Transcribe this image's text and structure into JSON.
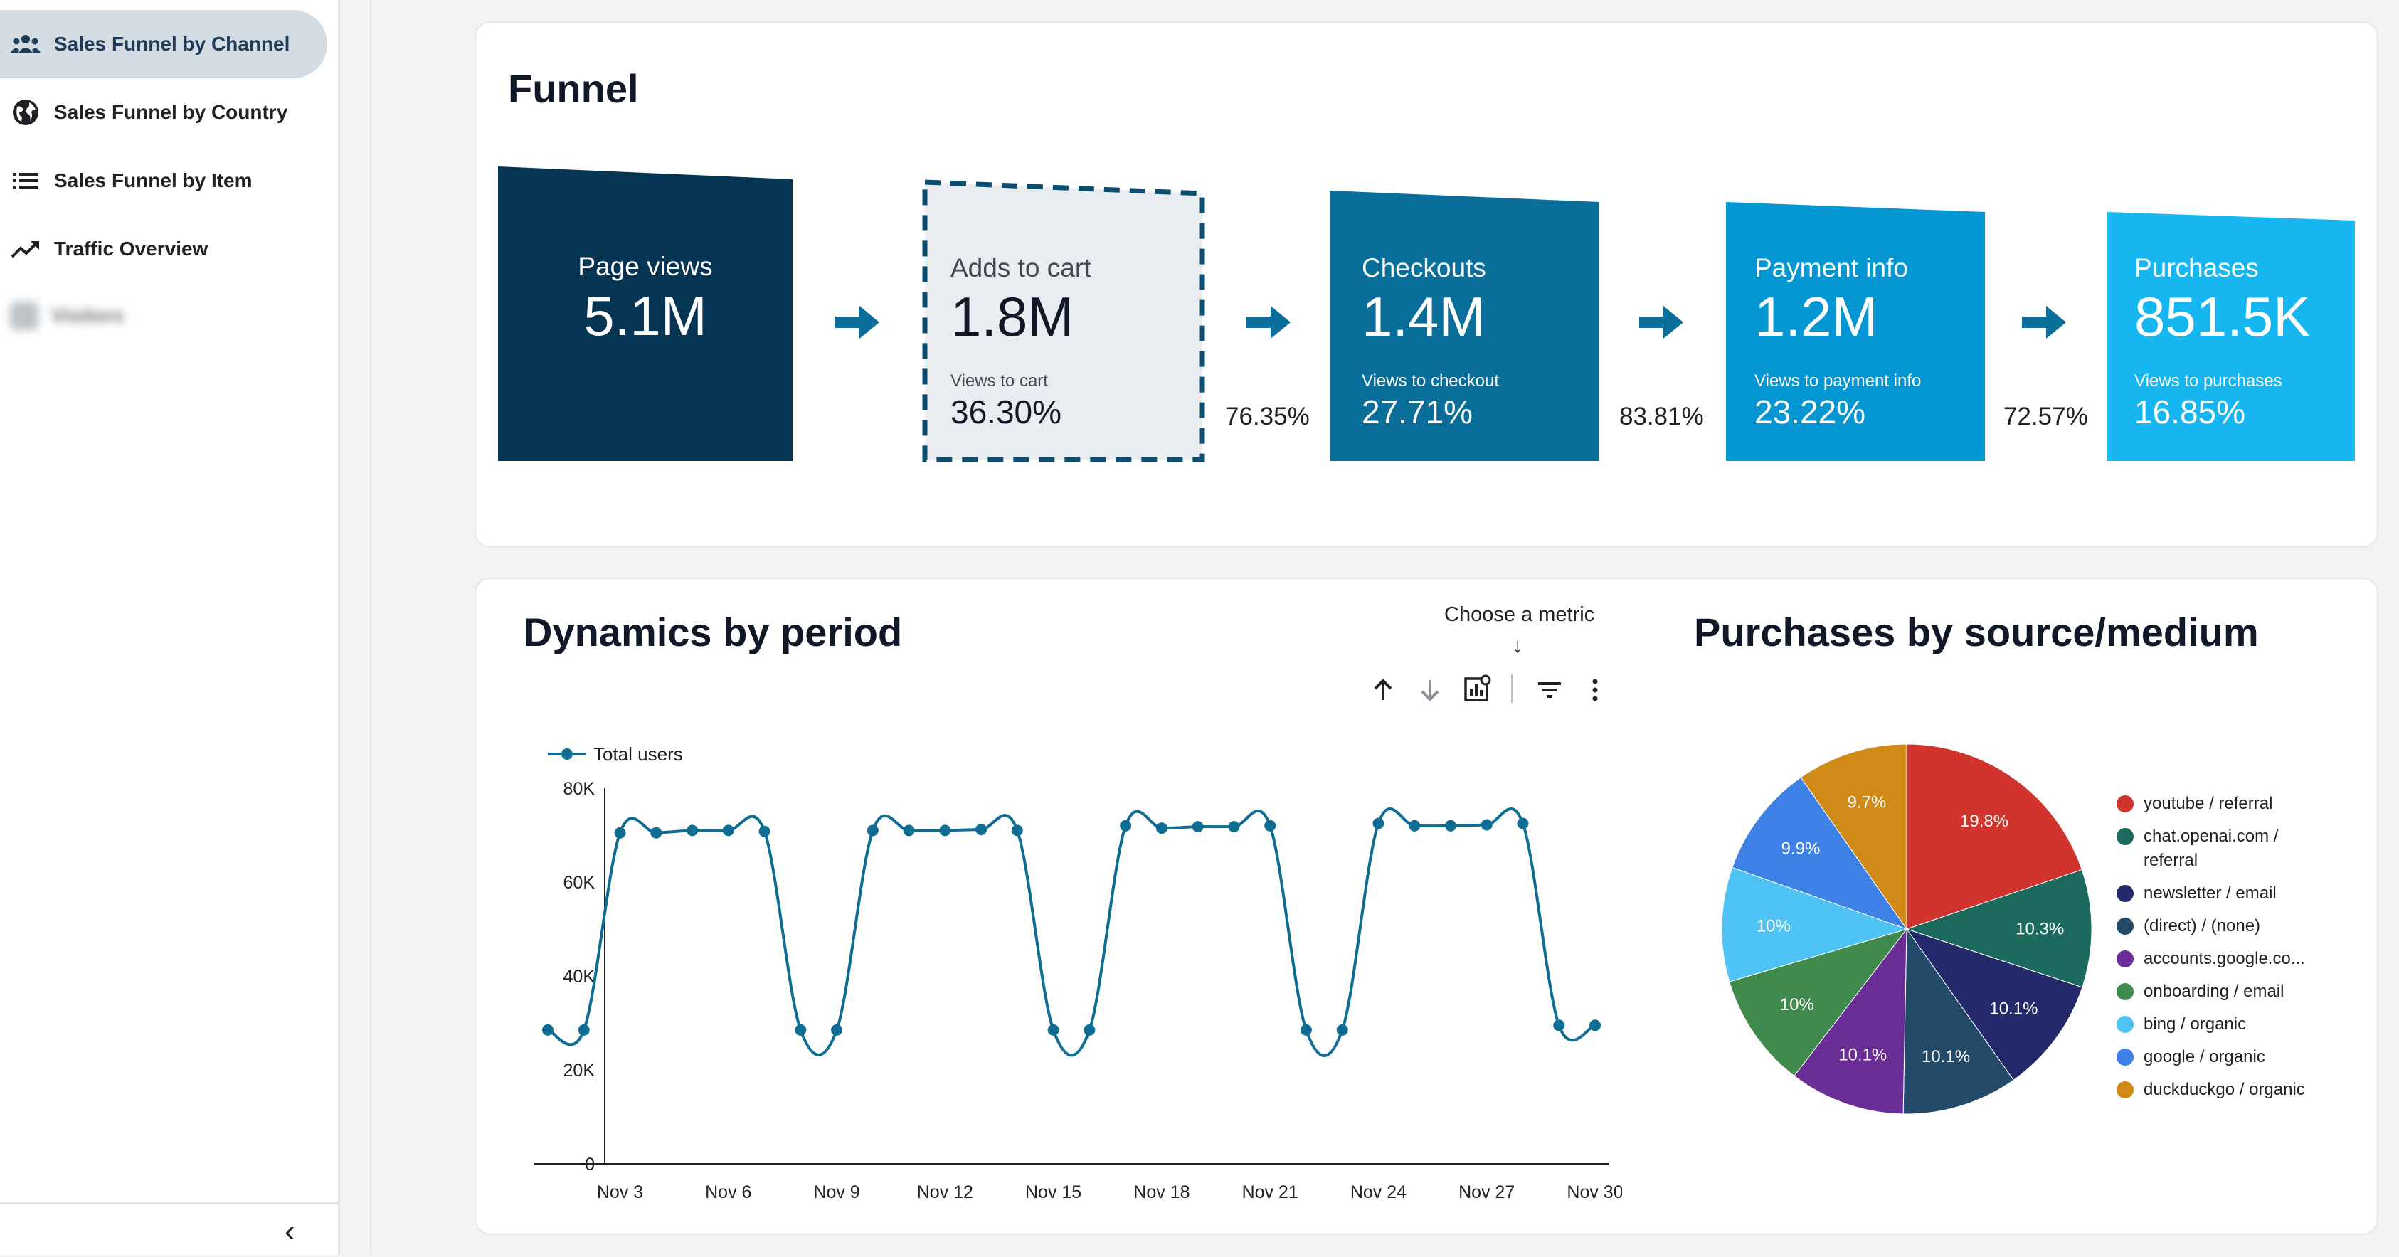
{
  "sidebar": {
    "items": [
      {
        "label": "Sales Funnel by Channel",
        "icon": "group-icon",
        "active": true
      },
      {
        "label": "Sales Funnel by Country",
        "icon": "globe-icon",
        "active": false
      },
      {
        "label": "Sales Funnel by Item",
        "icon": "list-icon",
        "active": false
      },
      {
        "label": "Traffic Overview",
        "icon": "trending-up-icon",
        "active": false
      }
    ],
    "blurred_item": "Visitors",
    "collapse_glyph": "‹"
  },
  "funnel": {
    "title": "Funnel",
    "stages": [
      {
        "label": "Page views",
        "value": "5.1M",
        "sub_label": "",
        "sub_value": "",
        "color": "#063554"
      },
      {
        "label": "Adds to cart",
        "value": "1.8M",
        "sub_label": "Views to cart",
        "sub_value": "36.30%",
        "color": "#e9edf1",
        "selected": true
      },
      {
        "label": "Checkouts",
        "value": "1.4M",
        "sub_label": "Views to checkout",
        "sub_value": "27.71%",
        "color": "#0a6e9b"
      },
      {
        "label": "Payment info",
        "value": "1.2M",
        "sub_label": "Views to payment info",
        "sub_value": "23.22%",
        "color": "#0396d3"
      },
      {
        "label": "Purchases",
        "value": "851.5K",
        "sub_label": "Views to purchases",
        "sub_value": "16.85%",
        "color": "#16b6f0"
      }
    ],
    "conversions": [
      "76.35%",
      "83.81%",
      "72.57%"
    ],
    "arrow_color": "#0a6e9b"
  },
  "dynamics": {
    "title": "Dynamics by period",
    "choose_metric": "Choose a metric",
    "choose_arrow": "↓",
    "controls": [
      "sort-ascending-icon",
      "sort-descending-icon",
      "chart-settings-icon",
      "filter-icon",
      "more-vert-icon"
    ],
    "chart_data": {
      "type": "line",
      "title": "Dynamics by period",
      "series": [
        {
          "name": "Total users",
          "color": "#0f6d94",
          "values": [
            28500,
            28500,
            70500,
            70500,
            71000,
            71000,
            70800,
            28500,
            28500,
            71000,
            71000,
            71000,
            71200,
            71000,
            28500,
            28500,
            72000,
            71500,
            71800,
            71800,
            72000,
            28500,
            28500,
            72500,
            72000,
            72000,
            72200,
            72500,
            29500,
            29500
          ]
        }
      ],
      "x": [
        "Nov 1",
        "Nov 2",
        "Nov 3",
        "Nov 4",
        "Nov 5",
        "Nov 6",
        "Nov 7",
        "Nov 8",
        "Nov 9",
        "Nov 10",
        "Nov 11",
        "Nov 12",
        "Nov 13",
        "Nov 14",
        "Nov 15",
        "Nov 16",
        "Nov 17",
        "Nov 18",
        "Nov 19",
        "Nov 20",
        "Nov 21",
        "Nov 22",
        "Nov 23",
        "Nov 24",
        "Nov 25",
        "Nov 26",
        "Nov 27",
        "Nov 28",
        "Nov 29",
        "Nov 30"
      ],
      "x_tick_labels": [
        "Nov 3",
        "Nov 6",
        "Nov 9",
        "Nov 12",
        "Nov 15",
        "Nov 18",
        "Nov 21",
        "Nov 24",
        "Nov 27",
        "Nov 30"
      ],
      "y_tick_labels": [
        "0",
        "20K",
        "40K",
        "60K",
        "80K"
      ],
      "ylim": [
        0,
        80000
      ],
      "legend": "top-left",
      "xlabel": "",
      "ylabel": "",
      "grid": false
    }
  },
  "purchases": {
    "title": "Purchases by source/medium",
    "chart_data": {
      "type": "pie",
      "title": "Purchases by source/medium",
      "slices": [
        {
          "name": "youtube / referral",
          "value": 19.8,
          "label": "19.8%",
          "color": "#d0342c"
        },
        {
          "name": "chat.openai.com / referral",
          "value": 10.3,
          "label": "10.3%",
          "color": "#1c6a5e"
        },
        {
          "name": "newsletter / email",
          "value": 10.1,
          "label": "10.1%",
          "color": "#24296b"
        },
        {
          "name": "(direct) / (none)",
          "value": 10.1,
          "label": "10.1%",
          "color": "#234a68"
        },
        {
          "name": "accounts.google.co...",
          "value": 10.1,
          "label": "10.1%",
          "color": "#6a2d96"
        },
        {
          "name": "onboarding / email",
          "value": 10,
          "label": "10%",
          "color": "#3f8a4c"
        },
        {
          "name": "bing / organic",
          "value": 10,
          "label": "10%",
          "color": "#4fc3f4"
        },
        {
          "name": "google / organic",
          "value": 9.9,
          "label": "9.9%",
          "color": "#3d80e6"
        },
        {
          "name": "duckduckgo / organic",
          "value": 9.7,
          "label": "9.7%",
          "color": "#cf8a17"
        }
      ],
      "legend": "right"
    }
  }
}
